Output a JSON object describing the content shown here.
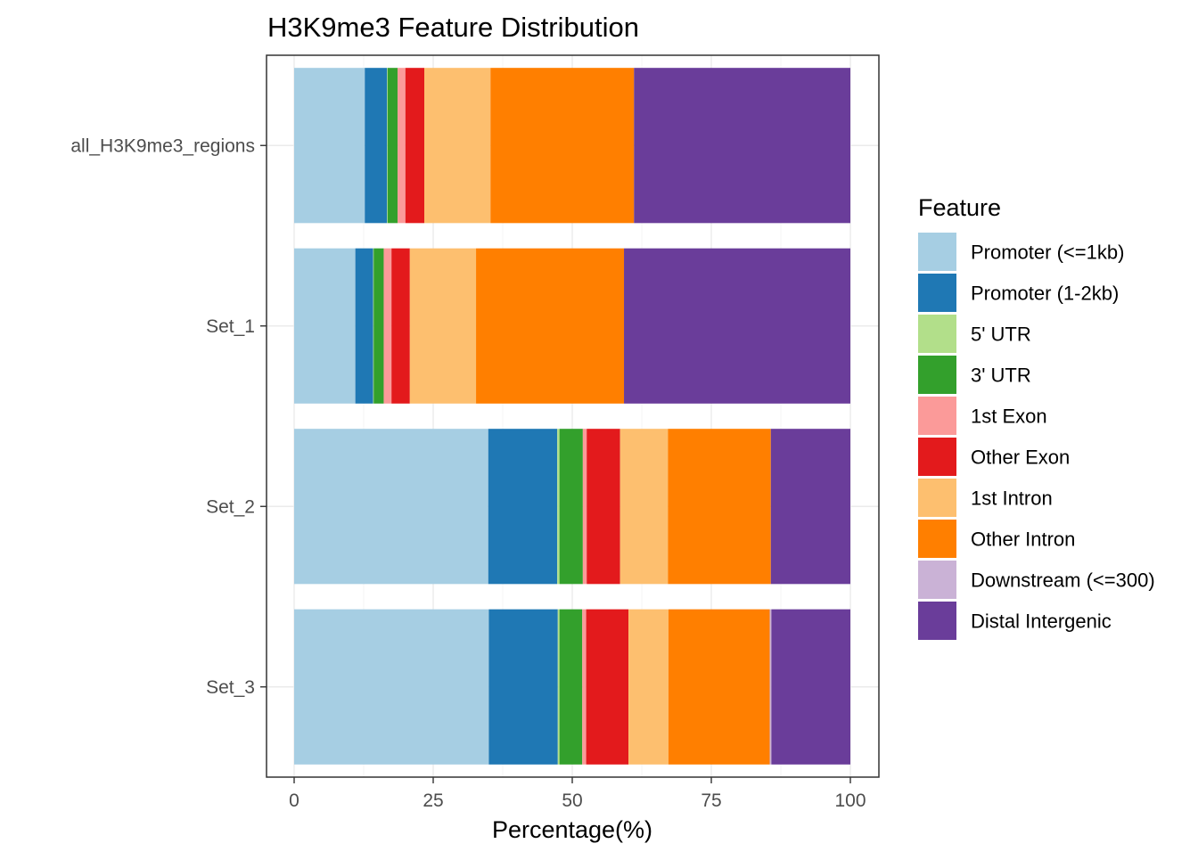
{
  "chart_data": {
    "type": "bar",
    "orientation": "horizontal",
    "stacked": true,
    "title": "H3K9me3 Feature Distribution",
    "xlabel": "Percentage(%)",
    "ylabel": "",
    "xlim": [
      0,
      100
    ],
    "xticks": [
      "0",
      "25",
      "50",
      "75",
      "100"
    ],
    "grid": true,
    "legend_title": "Feature",
    "legend_position": "right",
    "categories": [
      "all_H3K9me3_regions",
      "Set_1",
      "Set_2",
      "Set_3"
    ],
    "series": [
      {
        "name": "Promoter (<=1kb)",
        "color": "#a6cee3",
        "values": [
          12.7,
          11.0,
          34.9,
          35.0
        ]
      },
      {
        "name": "Promoter (1-2kb)",
        "color": "#1f78b4",
        "values": [
          4.0,
          3.2,
          12.4,
          12.4
        ]
      },
      {
        "name": "5' UTR",
        "color": "#b2df8a",
        "values": [
          0.1,
          0.1,
          0.4,
          0.3
        ]
      },
      {
        "name": "3' UTR",
        "color": "#33a02c",
        "values": [
          1.8,
          1.8,
          4.2,
          4.1
        ]
      },
      {
        "name": "1st Exon",
        "color": "#fb9a99",
        "values": [
          1.4,
          1.4,
          0.7,
          0.7
        ]
      },
      {
        "name": "Other Exon",
        "color": "#e31a1c",
        "values": [
          3.4,
          3.3,
          6.0,
          7.6
        ]
      },
      {
        "name": "1st Intron",
        "color": "#fdbf6f",
        "values": [
          11.9,
          11.9,
          8.6,
          7.2
        ]
      },
      {
        "name": "Other Intron",
        "color": "#ff7f00",
        "values": [
          25.8,
          26.6,
          18.5,
          18.2
        ]
      },
      {
        "name": "Downstream (<=300)",
        "color": "#cab2d6",
        "values": [
          0.0,
          0.0,
          0.0,
          0.3
        ]
      },
      {
        "name": "Distal Intergenic",
        "color": "#6a3d9a",
        "values": [
          38.9,
          40.7,
          14.3,
          14.2
        ]
      }
    ]
  }
}
